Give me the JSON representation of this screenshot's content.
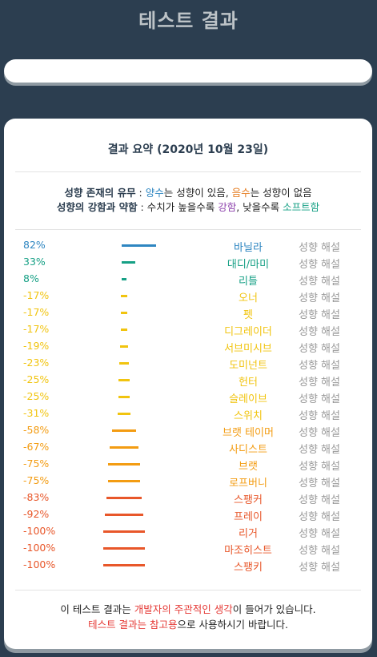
{
  "page_title": "테스트 결과",
  "summary": {
    "title": "결과 요약 (2020년 10월 23일)",
    "legend_line1": {
      "label": "성향 존재의 유무",
      "sep": " : ",
      "positive": "양수",
      "positive_text": "는 성향이 있음, ",
      "negative": "음수",
      "negative_text": "는 성향이 없음"
    },
    "legend_line2": {
      "label": "성향의 강함과 약함",
      "sep": " : 수치가 높을수록 ",
      "strong": "강함",
      "mid": ", 낮을수록 ",
      "soft": "소프트함"
    }
  },
  "colors": {
    "positive_blue": "#2e86c1",
    "positive_teal": "#16a085",
    "mid_yellow": "#f1c40f",
    "low_orange": "#f39c12",
    "lowest_red": "#e8572a"
  },
  "results": [
    {
      "percent": "82%",
      "value": 82,
      "name": "바닐라",
      "color": "#2e86c1",
      "interpret": "성향 해설"
    },
    {
      "percent": "33%",
      "value": 33,
      "name": "대디/마미",
      "color": "#16a085",
      "interpret": "성향 해설"
    },
    {
      "percent": "8%",
      "value": 8,
      "name": "리틀",
      "color": "#16a085",
      "interpret": "성향 해설"
    },
    {
      "percent": "-17%",
      "value": -17,
      "name": "오너",
      "color": "#f1c40f",
      "interpret": "성향 해설"
    },
    {
      "percent": "-17%",
      "value": -17,
      "name": "펫",
      "color": "#f1c40f",
      "interpret": "성향 해설"
    },
    {
      "percent": "-17%",
      "value": -17,
      "name": "디그레이더",
      "color": "#f1c40f",
      "interpret": "성향 해설"
    },
    {
      "percent": "-19%",
      "value": -19,
      "name": "서브미시브",
      "color": "#f1c40f",
      "interpret": "성향 해설"
    },
    {
      "percent": "-23%",
      "value": -23,
      "name": "도미넌트",
      "color": "#f1c40f",
      "interpret": "성향 해설"
    },
    {
      "percent": "-25%",
      "value": -25,
      "name": "헌터",
      "color": "#f1c40f",
      "interpret": "성향 해설"
    },
    {
      "percent": "-25%",
      "value": -25,
      "name": "슬레이브",
      "color": "#f1c40f",
      "interpret": "성향 해설"
    },
    {
      "percent": "-31%",
      "value": -31,
      "name": "스위치",
      "color": "#f1c40f",
      "interpret": "성향 해설"
    },
    {
      "percent": "-58%",
      "value": -58,
      "name": "브랫 테이머",
      "color": "#f39c12",
      "interpret": "성향 해설"
    },
    {
      "percent": "-67%",
      "value": -67,
      "name": "사디스트",
      "color": "#f39c12",
      "interpret": "성향 해설"
    },
    {
      "percent": "-75%",
      "value": -75,
      "name": "브랫",
      "color": "#f39c12",
      "interpret": "성향 해설"
    },
    {
      "percent": "-75%",
      "value": -75,
      "name": "로프버니",
      "color": "#f39c12",
      "interpret": "성향 해설"
    },
    {
      "percent": "-83%",
      "value": -83,
      "name": "스팽커",
      "color": "#e8572a",
      "interpret": "성향 해설"
    },
    {
      "percent": "-92%",
      "value": -92,
      "name": "프레이",
      "color": "#e8572a",
      "interpret": "성향 해설"
    },
    {
      "percent": "-100%",
      "value": -100,
      "name": "리거",
      "color": "#e8572a",
      "interpret": "성향 해설"
    },
    {
      "percent": "-100%",
      "value": -100,
      "name": "마조히스트",
      "color": "#e8572a",
      "interpret": "성향 해설"
    },
    {
      "percent": "-100%",
      "value": -100,
      "name": "스팽키",
      "color": "#e8572a",
      "interpret": "성향 해설"
    }
  ],
  "footer_note": {
    "l1_a": "이 테스트 결과는 ",
    "l1_red": "개발자의 주관적인 생각",
    "l1_b": "이 들어가 있습니다.",
    "l2_red": "테스트 결과는 참고용",
    "l2_b": "으로 사용하시기 바랍니다."
  }
}
